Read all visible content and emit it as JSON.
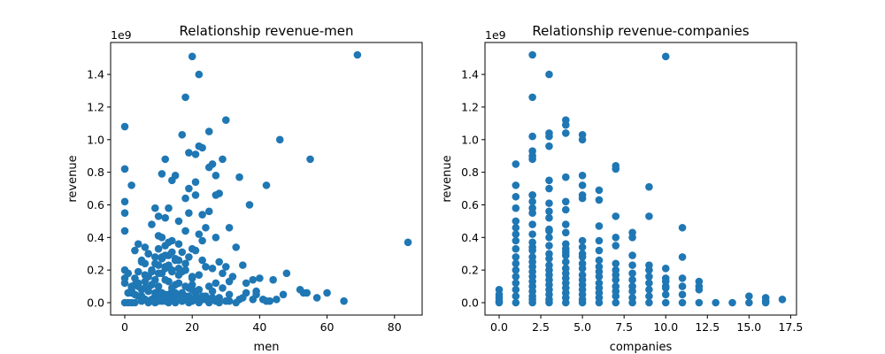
{
  "colors": {
    "marker": "#1f77b4",
    "axis": "#000000",
    "background": "#ffffff"
  },
  "chart_data": [
    {
      "type": "scatter",
      "title": "Relationship revenue-men",
      "xlabel": "men",
      "ylabel": "revenue",
      "offset_text": "1e9",
      "xlim": [
        -4.2,
        88.2
      ],
      "ylim": [
        -0.076,
        1.596
      ],
      "xticks": [
        0,
        20,
        40,
        60,
        80
      ],
      "xtick_labels": [
        "0",
        "20",
        "40",
        "60",
        "80"
      ],
      "yticks": [
        0.0,
        0.2,
        0.4,
        0.6,
        0.8,
        1.0,
        1.2,
        1.4
      ],
      "ytick_labels": [
        "0.0",
        "0.2",
        "0.4",
        "0.6",
        "0.8",
        "1.0",
        "1.2",
        "1.4"
      ],
      "grid": false,
      "series": [
        {
          "name": "companies",
          "x": [
            20,
            69,
            22,
            18,
            0,
            30,
            17,
            46,
            0,
            19,
            55,
            84,
            22,
            23,
            21,
            25,
            26,
            12,
            25,
            29,
            11,
            15,
            27,
            34,
            21,
            19,
            14,
            28,
            0,
            42,
            21,
            2,
            37,
            19,
            13,
            27,
            24,
            23,
            18,
            0,
            9,
            16,
            25,
            0,
            10,
            12,
            8,
            4,
            27,
            31,
            22,
            6,
            10,
            14,
            3,
            18,
            16,
            23,
            35,
            20,
            7,
            12,
            9,
            5,
            17,
            28,
            11,
            0,
            13,
            21,
            24,
            6,
            15,
            19,
            33,
            8,
            26,
            3,
            10,
            14,
            29,
            18,
            1,
            36,
            22,
            12,
            7,
            30,
            17,
            38,
            16,
            13,
            23,
            4,
            20,
            11,
            32,
            27,
            9,
            40,
            15,
            19,
            6,
            2,
            25,
            14,
            8,
            39,
            21,
            31,
            44,
            48,
            53,
            41,
            12,
            0,
            5,
            17,
            24,
            10,
            13,
            3,
            7,
            18,
            9,
            15,
            22,
            11,
            26,
            6,
            20,
            16,
            28,
            14,
            1,
            8,
            12,
            19,
            4,
            23,
            10,
            13,
            17,
            2,
            21,
            9,
            15,
            34,
            43,
            54,
            57,
            60,
            65,
            47,
            38,
            42,
            31,
            35,
            45,
            52,
            0,
            1,
            2,
            3,
            5,
            7,
            9,
            11,
            13,
            15,
            17,
            19,
            22,
            25,
            28,
            31,
            33,
            6,
            8,
            10,
            12,
            14,
            16,
            18,
            20,
            24,
            27,
            30,
            0,
            2,
            4,
            6,
            8,
            10,
            12,
            14,
            16,
            18,
            20,
            22,
            26,
            29,
            36,
            39,
            1,
            3,
            5,
            7,
            9,
            11,
            13,
            15,
            17,
            19,
            21,
            23,
            4,
            6,
            8,
            10,
            12,
            14,
            16,
            18,
            20,
            5,
            9,
            11,
            13,
            15,
            7,
            10,
            12,
            14,
            16,
            11,
            13
          ],
          "y": [
            1.51,
            1.52,
            1.4,
            1.26,
            1.08,
            1.12,
            1.03,
            1.0,
            0.82,
            0.92,
            0.88,
            0.37,
            0.96,
            0.95,
            0.91,
            1.05,
            0.85,
            0.88,
            0.83,
            0.88,
            0.79,
            0.78,
            0.78,
            0.77,
            0.74,
            0.7,
            0.75,
            0.67,
            0.62,
            0.72,
            0.66,
            0.72,
            0.6,
            0.55,
            0.58,
            0.66,
            0.46,
            0.54,
            0.64,
            0.55,
            0.58,
            0.5,
            0.56,
            0.44,
            0.53,
            0.52,
            0.48,
            0.36,
            0.4,
            0.46,
            0.42,
            0.34,
            0.41,
            0.38,
            0.32,
            0.44,
            0.36,
            0.38,
            0.23,
            0.33,
            0.3,
            0.35,
            0.28,
            0.26,
            0.31,
            0.25,
            0.27,
            0.2,
            0.29,
            0.32,
            0.22,
            0.24,
            0.26,
            0.28,
            0.34,
            0.19,
            0.21,
            0.15,
            0.23,
            0.2,
            0.18,
            0.24,
            0.18,
            0.12,
            0.17,
            0.22,
            0.16,
            0.22,
            0.19,
            0.14,
            0.21,
            0.13,
            0.26,
            0.1,
            0.15,
            0.18,
            0.16,
            0.12,
            0.14,
            0.15,
            0.11,
            0.09,
            0.13,
            0.08,
            0.1,
            0.07,
            0.11,
            0.07,
            0.06,
            0.13,
            0.14,
            0.18,
            0.06,
            0.02,
            0.05,
            0.12,
            0.08,
            0.06,
            0.04,
            0.07,
            0.05,
            0.11,
            0.09,
            0.04,
            0.03,
            0.05,
            0.02,
            0.06,
            0.03,
            0.02,
            0.08,
            0.04,
            0.03,
            0.05,
            0.06,
            0.02,
            0.03,
            0.01,
            0.04,
            0.02,
            0.01,
            0.03,
            0.01,
            0.06,
            0.02,
            0.04,
            0.01,
            0.02,
            0.01,
            0.06,
            0.03,
            0.06,
            0.01,
            0.05,
            0.02,
            0.01,
            0.05,
            0.03,
            0.02,
            0.08,
            0.0,
            0.0,
            0.0,
            0.0,
            0.01,
            0.0,
            0.0,
            0.01,
            0.0,
            0.0,
            0.01,
            0.0,
            0.0,
            0.0,
            0.0,
            0.01,
            0.0,
            0.02,
            0.01,
            0.02,
            0.01,
            0.02,
            0.03,
            0.02,
            0.01,
            0.02,
            0.01,
            0.01,
            0.15,
            0.1,
            0.12,
            0.09,
            0.11,
            0.1,
            0.14,
            0.09,
            0.12,
            0.1,
            0.11,
            0.08,
            0.07,
            0.09,
            0.06,
            0.05,
            0.06,
            0.05,
            0.04,
            0.07,
            0.06,
            0.05,
            0.04,
            0.06,
            0.05,
            0.04,
            0.03,
            0.04,
            0.19,
            0.17,
            0.2,
            0.18,
            0.21,
            0.19,
            0.17,
            0.2,
            0.16,
            0.25,
            0.24,
            0.28,
            0.23,
            0.27,
            0.3,
            0.33,
            0.29,
            0.31,
            0.26,
            0.4,
            0.37
          ]
        }
      ]
    },
    {
      "type": "scatter",
      "title": "Relationship revenue-companies",
      "xlabel": "companies",
      "ylabel": "revenue",
      "offset_text": "1e9",
      "xlim": [
        -0.85,
        17.85
      ],
      "ylim": [
        -0.076,
        1.596
      ],
      "xticks": [
        0.0,
        2.5,
        5.0,
        7.5,
        10.0,
        12.5,
        15.0,
        17.5
      ],
      "xtick_labels": [
        "0.0",
        "2.5",
        "5.0",
        "7.5",
        "10.0",
        "12.5",
        "15.0",
        "17.5"
      ],
      "yticks": [
        0.0,
        0.2,
        0.4,
        0.6,
        0.8,
        1.0,
        1.2,
        1.4
      ],
      "ytick_labels": [
        "0.0",
        "0.2",
        "0.4",
        "0.6",
        "0.8",
        "1.0",
        "1.2",
        "1.4"
      ],
      "grid": false,
      "series": [
        {
          "name": "companies",
          "x": [
            2,
            3,
            10,
            2,
            4,
            4,
            3,
            3,
            5,
            5,
            2,
            2,
            4,
            1,
            3,
            2,
            5,
            7,
            7,
            1,
            2,
            3,
            9,
            5,
            6,
            1,
            4,
            2,
            3,
            4,
            5,
            6,
            1,
            2,
            3,
            5,
            9,
            7,
            11,
            2,
            4,
            8,
            1,
            3,
            6,
            10,
            2,
            5,
            4,
            7,
            3,
            11,
            6,
            1,
            8,
            2,
            4,
            9,
            5,
            12,
            3,
            7,
            10,
            6,
            1,
            2,
            8,
            4,
            11,
            5,
            3,
            9,
            12,
            7,
            6,
            2,
            10,
            1,
            4,
            8,
            13,
            14,
            15,
            16,
            17,
            0,
            0,
            0,
            0,
            0,
            1,
            1,
            1,
            1,
            1,
            1,
            1,
            1,
            1,
            2,
            2,
            2,
            2,
            2,
            2,
            2,
            2,
            2,
            2,
            2,
            2,
            3,
            3,
            3,
            3,
            3,
            3,
            3,
            3,
            3,
            3,
            3,
            4,
            4,
            4,
            4,
            4,
            4,
            4,
            4,
            4,
            4,
            5,
            5,
            5,
            5,
            5,
            5,
            5,
            5,
            5,
            5,
            6,
            6,
            6,
            6,
            6,
            6,
            6,
            6,
            7,
            7,
            7,
            7,
            7,
            7,
            7,
            8,
            8,
            8,
            8,
            8,
            8,
            9,
            9,
            9,
            9,
            9,
            10,
            10,
            10,
            10,
            11,
            11,
            11,
            12,
            12,
            15,
            16,
            16,
            2,
            3,
            4,
            2,
            3
          ],
          "y": [
            1.52,
            1.4,
            1.51,
            1.26,
            1.12,
            1.09,
            1.04,
            1.02,
            1.03,
            1.0,
            1.02,
            0.93,
            1.04,
            0.85,
            0.96,
            0.9,
            0.78,
            0.84,
            0.82,
            0.72,
            0.88,
            0.75,
            0.71,
            0.72,
            0.69,
            0.65,
            0.77,
            0.66,
            0.7,
            0.62,
            0.66,
            0.63,
            0.58,
            0.58,
            0.61,
            0.64,
            0.53,
            0.53,
            0.46,
            0.55,
            0.57,
            0.43,
            0.5,
            0.52,
            0.47,
            0.21,
            0.48,
            0.38,
            0.43,
            0.4,
            0.44,
            0.28,
            0.38,
            0.46,
            0.4,
            0.42,
            0.36,
            0.23,
            0.34,
            0.13,
            0.4,
            0.35,
            0.15,
            0.32,
            0.42,
            0.37,
            0.29,
            0.33,
            0.15,
            0.3,
            0.35,
            0.2,
            0.1,
            0.24,
            0.26,
            0.34,
            0.1,
            0.38,
            0.31,
            0.23,
            0.0,
            0.0,
            0.04,
            0.03,
            0.02,
            0.08,
            0.05,
            0.03,
            0.01,
            0.0,
            0.33,
            0.28,
            0.24,
            0.2,
            0.16,
            0.12,
            0.08,
            0.04,
            0.0,
            0.32,
            0.28,
            0.25,
            0.22,
            0.19,
            0.16,
            0.13,
            0.1,
            0.07,
            0.04,
            0.02,
            0.0,
            0.3,
            0.27,
            0.23,
            0.2,
            0.17,
            0.14,
            0.11,
            0.08,
            0.05,
            0.02,
            0.0,
            0.29,
            0.25,
            0.21,
            0.18,
            0.15,
            0.12,
            0.09,
            0.06,
            0.03,
            0.0,
            0.28,
            0.24,
            0.21,
            0.17,
            0.14,
            0.11,
            0.08,
            0.05,
            0.02,
            0.0,
            0.22,
            0.19,
            0.16,
            0.12,
            0.09,
            0.06,
            0.03,
            0.0,
            0.2,
            0.17,
            0.14,
            0.1,
            0.07,
            0.04,
            0.0,
            0.18,
            0.14,
            0.1,
            0.07,
            0.03,
            0.0,
            0.16,
            0.12,
            0.08,
            0.04,
            0.0,
            0.13,
            0.09,
            0.05,
            0.0,
            0.1,
            0.05,
            0.0,
            0.08,
            0.0,
            0.0,
            0.01,
            0.0,
            0.66,
            0.56,
            0.48,
            0.62,
            0.45
          ]
        }
      ]
    }
  ]
}
